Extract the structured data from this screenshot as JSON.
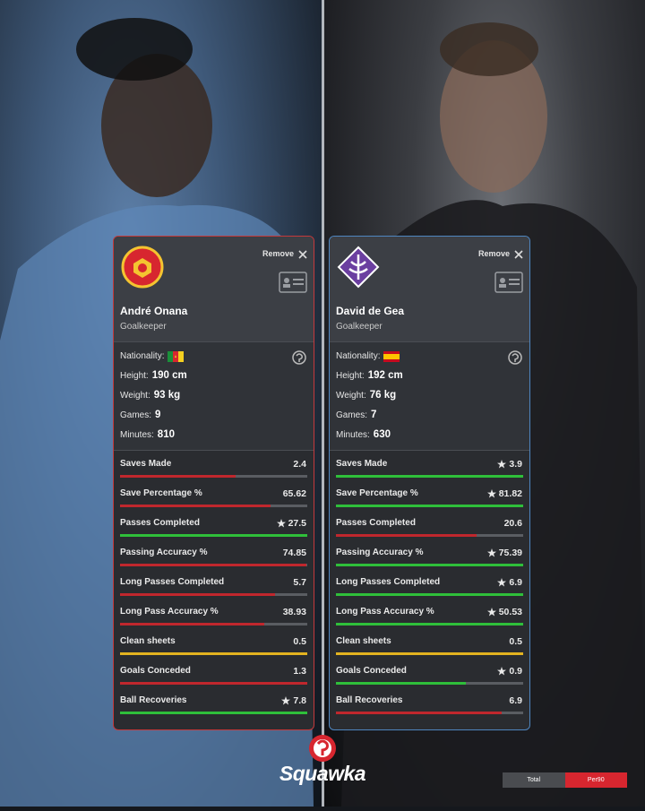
{
  "players": [
    {
      "remove": "Remove",
      "name": "André Onana",
      "position": "Goalkeeper",
      "border_color": "#c4393c",
      "info": [
        {
          "label": "Nationality:"
        },
        {
          "label": "Height:",
          "value": "190 cm"
        },
        {
          "label": "Weight:",
          "value": "93 kg"
        },
        {
          "label": "Games:",
          "value": "9"
        },
        {
          "label": "Minutes:",
          "value": "810"
        }
      ],
      "stats": [
        {
          "label": "Saves Made",
          "value": 2.4,
          "color": "#c0272d",
          "star": false
        },
        {
          "label": "Save Percentage %",
          "value": 65.62,
          "color": "#c0272d",
          "star": false
        },
        {
          "label": "Passes Completed",
          "value": 27.5,
          "color": "#2fbf3a",
          "star": true
        },
        {
          "label": "Passing Accuracy %",
          "value": 74.85,
          "color": "#c0272d",
          "star": false
        },
        {
          "label": "Long Passes Completed",
          "value": 5.7,
          "color": "#c0272d",
          "star": false
        },
        {
          "label": "Long Pass Accuracy %",
          "value": 38.93,
          "color": "#c0272d",
          "star": false
        },
        {
          "label": "Clean sheets",
          "value": 0.5,
          "color": "#e3b320",
          "star": false
        },
        {
          "label": "Goals Conceded",
          "value": 1.3,
          "color": "#c0272d",
          "star": false
        },
        {
          "label": "Ball Recoveries",
          "value": 7.8,
          "color": "#2fbf3a",
          "star": true
        }
      ]
    },
    {
      "remove": "Remove",
      "name": "David de Gea",
      "position": "Goalkeeper",
      "border_color": "#4f86c0",
      "info": [
        {
          "label": "Nationality:"
        },
        {
          "label": "Height:",
          "value": "192 cm"
        },
        {
          "label": "Weight:",
          "value": "76 kg"
        },
        {
          "label": "Games:",
          "value": "7"
        },
        {
          "label": "Minutes:",
          "value": "630"
        }
      ],
      "stats": [
        {
          "label": "Saves Made",
          "value": 3.9,
          "color": "#2fbf3a",
          "star": true
        },
        {
          "label": "Save Percentage %",
          "value": 81.82,
          "color": "#2fbf3a",
          "star": true
        },
        {
          "label": "Passes Completed",
          "value": 20.6,
          "color": "#c0272d",
          "star": false
        },
        {
          "label": "Passing Accuracy %",
          "value": 75.39,
          "color": "#2fbf3a",
          "star": true
        },
        {
          "label": "Long Passes Completed",
          "value": 6.9,
          "color": "#2fbf3a",
          "star": true
        },
        {
          "label": "Long Pass Accuracy %",
          "value": 50.53,
          "color": "#2fbf3a",
          "star": true
        },
        {
          "label": "Clean sheets",
          "value": 0.5,
          "color": "#e3b320",
          "star": false
        },
        {
          "label": "Goals Conceded",
          "value": 0.9,
          "color": "#2fbf3a",
          "star": true
        },
        {
          "label": "Ball Recoveries",
          "value": 6.9,
          "color": "#c0272d",
          "star": false
        }
      ]
    }
  ],
  "brand": "Squawka",
  "toggle": {
    "options": [
      "Total",
      "Per90"
    ],
    "active": 1
  }
}
